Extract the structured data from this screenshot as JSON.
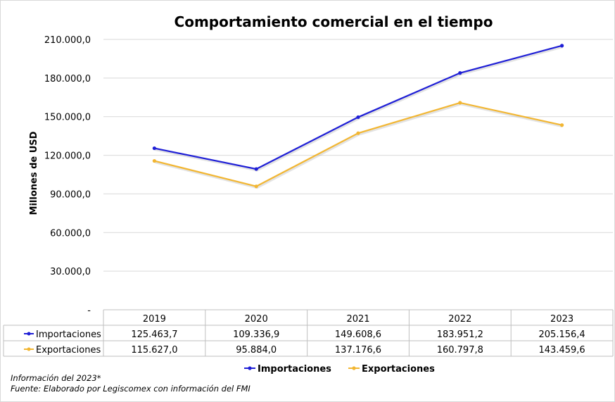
{
  "chart_data": {
    "type": "line",
    "title": "Comportamiento comercial en el tiempo",
    "ylabel": "Millones de USD",
    "categories": [
      "2019",
      "2020",
      "2021",
      "2022",
      "2023"
    ],
    "yticks": [
      "-",
      "30.000,0",
      "60.000,0",
      "90.000,0",
      "120.000,0",
      "150.000,0",
      "180.000,0",
      "210.000,0"
    ],
    "ylim": [
      0,
      210000
    ],
    "grid": true,
    "legend_position": "bottom",
    "series": [
      {
        "name": "Importaciones",
        "color": "#1f1fd6",
        "values": [
          125463.7,
          109336.9,
          149608.6,
          183951.2,
          205156.4
        ],
        "labels": [
          "125.463,7",
          "109.336,9",
          "149.608,6",
          "183.951,2",
          "205.156,4"
        ]
      },
      {
        "name": "Exportaciones",
        "color": "#f2b632",
        "values": [
          115627.0,
          95884.0,
          137176.6,
          160797.8,
          143459.6
        ],
        "labels": [
          "115.627,0",
          "95.884,0",
          "137.176,6",
          "160.797,8",
          "143.459,6"
        ]
      }
    ]
  },
  "notes": {
    "info": "Información del 2023*",
    "source": "Fuente: Elaborado por Legiscomex con información del FMI"
  }
}
